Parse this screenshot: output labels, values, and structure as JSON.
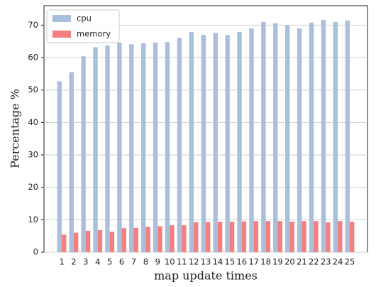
{
  "chart_data": {
    "type": "bar",
    "xlabel": "map update times",
    "ylabel": "Percentage %",
    "categories": [
      "1",
      "2",
      "3",
      "4",
      "5",
      "6",
      "7",
      "8",
      "9",
      "10",
      "11",
      "12",
      "13",
      "14",
      "15",
      "16",
      "17",
      "18",
      "19",
      "20",
      "21",
      "22",
      "23",
      "24",
      "25"
    ],
    "series": [
      {
        "name": "cpu",
        "color": "#a9bfdc",
        "values": [
          52.7,
          55.5,
          60.4,
          63.2,
          63.7,
          64.6,
          64.1,
          64.4,
          64.6,
          64.8,
          66.1,
          67.9,
          67.0,
          67.6,
          67.0,
          67.9,
          69.0,
          71.0,
          70.6,
          70.0,
          69.0,
          70.8,
          71.6,
          71.0,
          71.4
        ]
      },
      {
        "name": "memory",
        "color": "#f47f7f",
        "values": [
          5.4,
          6.0,
          6.6,
          6.8,
          6.3,
          7.4,
          7.5,
          7.8,
          8.0,
          8.3,
          8.3,
          9.2,
          9.3,
          9.4,
          9.4,
          9.5,
          9.6,
          9.6,
          9.6,
          9.4,
          9.6,
          9.6,
          9.2,
          9.6,
          9.4
        ]
      }
    ],
    "ylim": [
      0,
      76
    ],
    "yticks": [
      0,
      10,
      20,
      30,
      40,
      50,
      60,
      70
    ],
    "grid": true,
    "legend": "upper-left"
  }
}
